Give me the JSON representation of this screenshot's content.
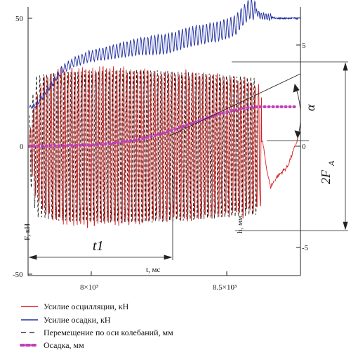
{
  "chart_data": {
    "type": "line",
    "left_axis": {
      "label": "F, кН",
      "ticks": [
        -50,
        0,
        50
      ],
      "range": [
        -50,
        55
      ]
    },
    "right_axis": {
      "label": "h, мм",
      "ticks": [
        -5,
        0,
        5
      ],
      "range": [
        -5,
        6
      ]
    },
    "x_axis": {
      "label": "t, мс",
      "ticks": [
        "8×10³",
        "8.5×10³"
      ],
      "tick_values": [
        8000,
        8500
      ],
      "range": [
        7770,
        8810
      ]
    },
    "annotations": {
      "interval": "t1",
      "amplitude": "2F",
      "amplitude_sub": "A",
      "angle": "α"
    },
    "series": [
      {
        "name": "Усилие осцилляции, кН",
        "color": "#d42020",
        "axis": "left",
        "style": "solid",
        "envelope": [
          [
            7775,
            5
          ],
          [
            7795,
            18
          ],
          [
            7830,
            28
          ],
          [
            7900,
            31
          ],
          [
            8100,
            32
          ],
          [
            8300,
            30
          ],
          [
            8450,
            29
          ],
          [
            8600,
            27
          ],
          [
            8660,
            24
          ]
        ],
        "after_stop": [
          [
            8665,
            2
          ],
          [
            8680,
            -8
          ],
          [
            8695,
            -16
          ],
          [
            8720,
            -12
          ],
          [
            8760,
            -8
          ],
          [
            8790,
            0
          ],
          [
            8800,
            3
          ]
        ]
      },
      {
        "name": "Усилие осадки, кН",
        "color": "#2030a0",
        "axis": "left",
        "style": "solid",
        "points": [
          [
            7775,
            15
          ],
          [
            7800,
            16
          ],
          [
            7850,
            23
          ],
          [
            7900,
            30
          ],
          [
            7950,
            33
          ],
          [
            8000,
            35
          ],
          [
            8100,
            37
          ],
          [
            8200,
            39
          ],
          [
            8300,
            40
          ],
          [
            8400,
            43
          ],
          [
            8500,
            45
          ],
          [
            8560,
            47
          ],
          [
            8600,
            52
          ],
          [
            8620,
            54
          ],
          [
            8660,
            51
          ],
          [
            8720,
            50
          ],
          [
            8810,
            50
          ]
        ]
      },
      {
        "name": "Перемещение по оси колебаний, мм",
        "color": "#111111",
        "axis": "right",
        "style": "dashed",
        "envelope": [
          [
            7775,
            1.5
          ],
          [
            7800,
            3.5
          ],
          [
            7900,
            3.7
          ],
          [
            8200,
            3.8
          ],
          [
            8450,
            3.6
          ],
          [
            8640,
            3.4
          ]
        ]
      },
      {
        "name": "Осадка, мм",
        "color": "#c040b8",
        "axis": "right",
        "style": "dots",
        "points": [
          [
            7775,
            0
          ],
          [
            7900,
            0.02
          ],
          [
            8000,
            0.05
          ],
          [
            8100,
            0.15
          ],
          [
            8200,
            0.35
          ],
          [
            8300,
            0.7
          ],
          [
            8400,
            1.15
          ],
          [
            8500,
            1.6
          ],
          [
            8600,
            1.9
          ],
          [
            8650,
            1.95
          ],
          [
            8800,
            1.95
          ]
        ]
      }
    ]
  }
}
